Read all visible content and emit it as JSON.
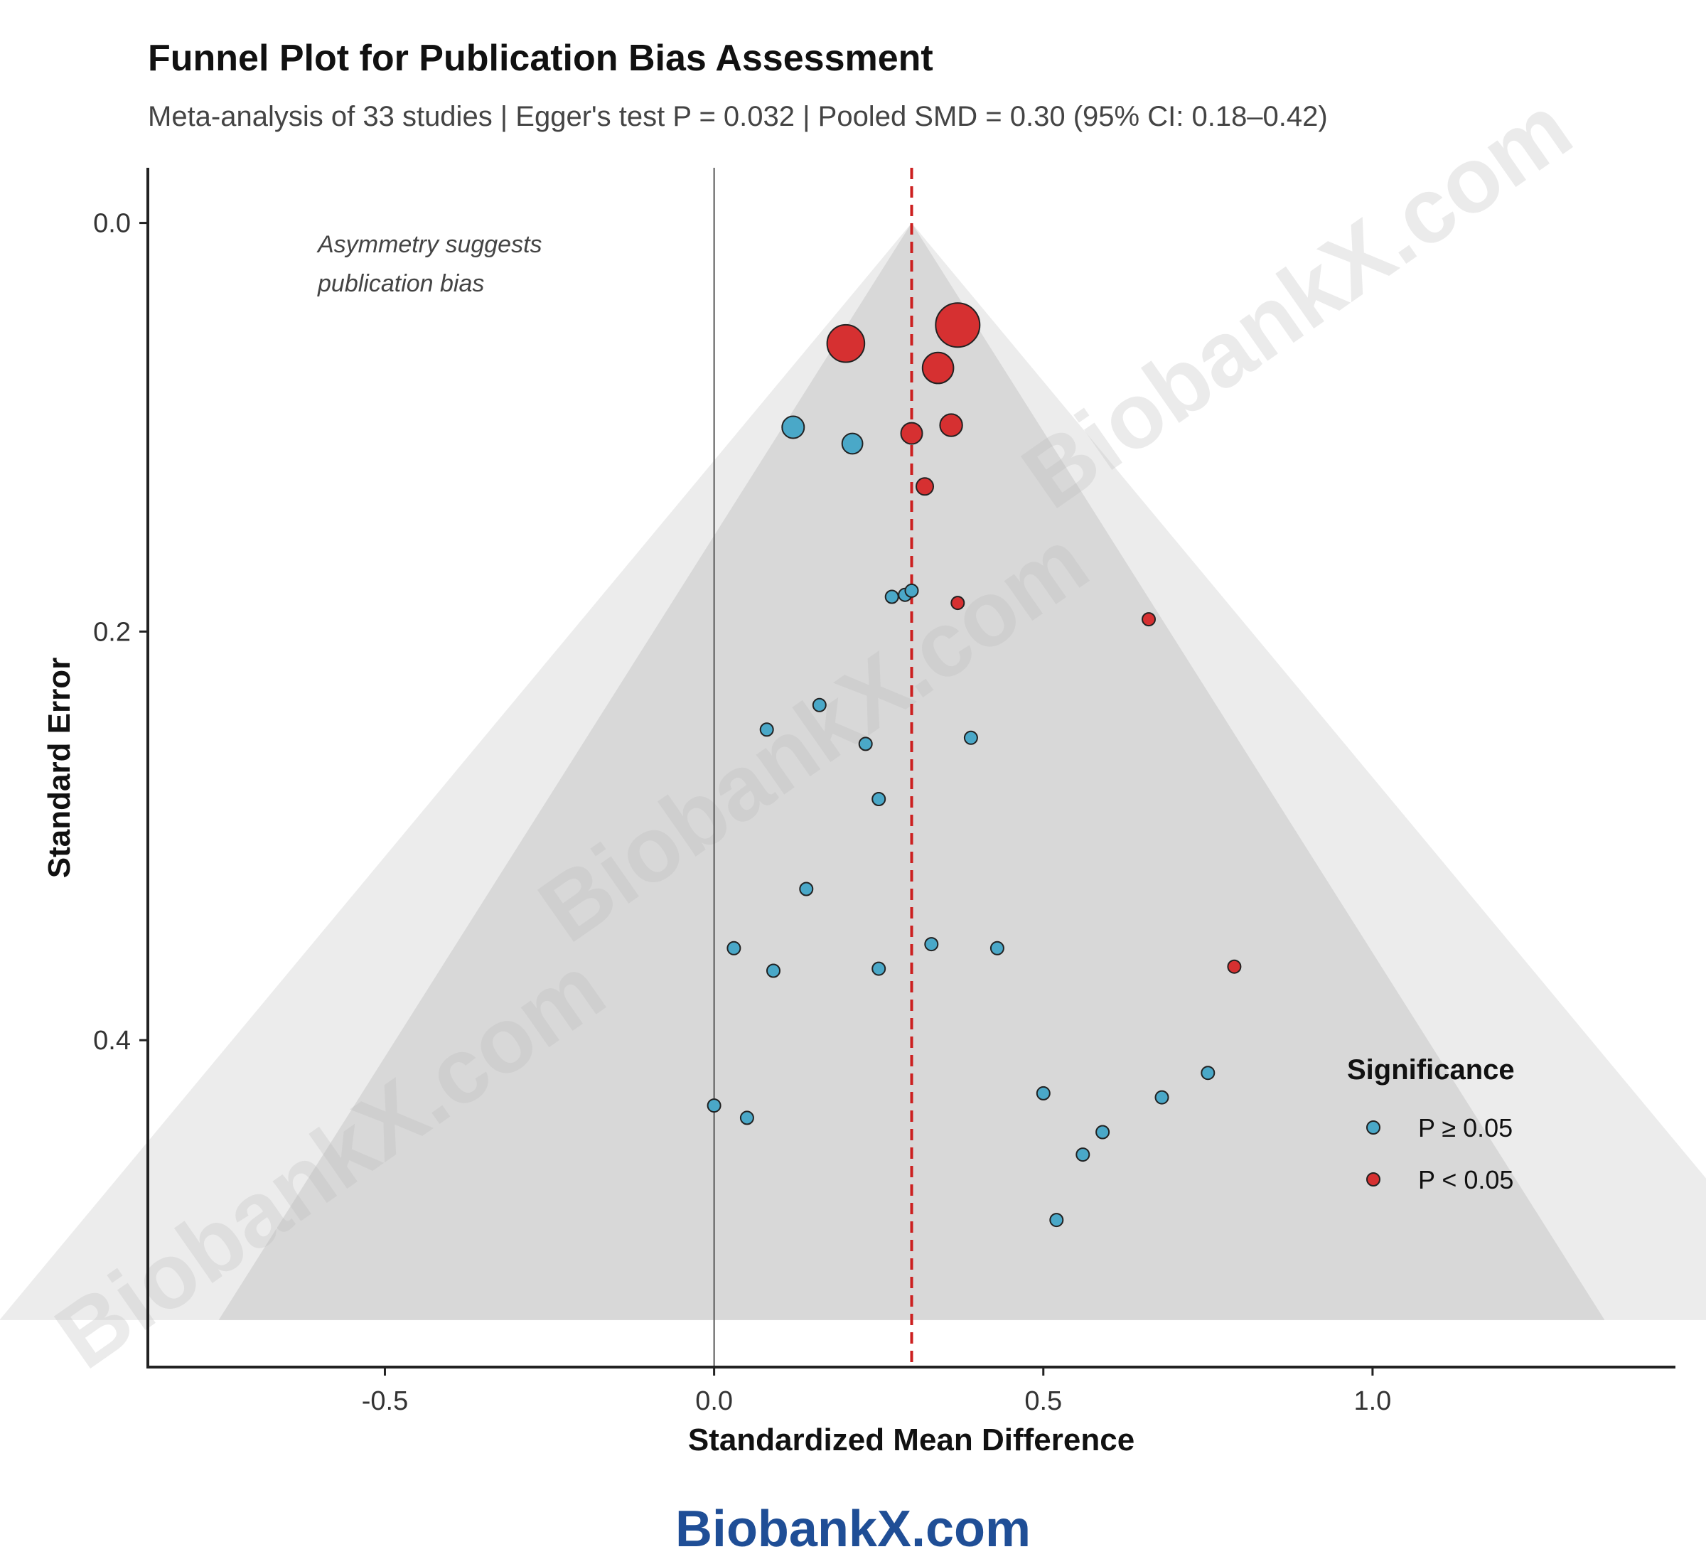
{
  "chart_data": {
    "type": "scatter",
    "title": "Funnel Plot for Publication Bias Assessment",
    "subtitle": "Meta-analysis of 33 studies | Egger's test P = 0.032 | Pooled SMD = 0.30 (95% CI: 0.18–0.42)",
    "xlabel": "Standardized Mean Difference",
    "ylabel": "Standard Error",
    "xlim": [
      -0.86,
      1.46
    ],
    "ylim": [
      -0.027,
      0.56
    ],
    "y_reversed": true,
    "x_ticks": [
      -0.5,
      0.0,
      0.5,
      1.0
    ],
    "x_tick_labels": [
      "-0.5",
      "0.0",
      "0.5",
      "1.0"
    ],
    "y_ticks": [
      0.0,
      0.2,
      0.4
    ],
    "y_tick_labels": [
      "0.0",
      "0.2",
      "0.4"
    ],
    "pooled_smd": 0.3,
    "funnel_se_max": 0.537,
    "funnel_z_inner": 1.96,
    "funnel_z_outer": 2.58,
    "reference_line_x": 0.0,
    "annotation": [
      "Asymmetry suggests",
      "publication bias"
    ],
    "legend": {
      "title": "Significance",
      "position": "bottom-right",
      "entries": [
        {
          "label": "P ≥ 0.05",
          "color": "#4aa8c8"
        },
        {
          "label": "P < 0.05",
          "color": "#d63031"
        }
      ]
    },
    "points": [
      {
        "x": 0.37,
        "y": 0.05,
        "sig": true
      },
      {
        "x": 0.2,
        "y": 0.059,
        "sig": true
      },
      {
        "x": 0.34,
        "y": 0.071,
        "sig": true
      },
      {
        "x": 0.12,
        "y": 0.1,
        "sig": false
      },
      {
        "x": 0.36,
        "y": 0.099,
        "sig": true
      },
      {
        "x": 0.3,
        "y": 0.103,
        "sig": true
      },
      {
        "x": 0.21,
        "y": 0.108,
        "sig": false
      },
      {
        "x": 0.32,
        "y": 0.129,
        "sig": true
      },
      {
        "x": 0.27,
        "y": 0.183,
        "sig": false
      },
      {
        "x": 0.29,
        "y": 0.182,
        "sig": false
      },
      {
        "x": 0.3,
        "y": 0.18,
        "sig": false
      },
      {
        "x": 0.37,
        "y": 0.186,
        "sig": true
      },
      {
        "x": 0.66,
        "y": 0.194,
        "sig": true
      },
      {
        "x": 0.16,
        "y": 0.236,
        "sig": false
      },
      {
        "x": 0.08,
        "y": 0.248,
        "sig": false
      },
      {
        "x": 0.23,
        "y": 0.255,
        "sig": false
      },
      {
        "x": 0.39,
        "y": 0.252,
        "sig": false
      },
      {
        "x": 0.25,
        "y": 0.282,
        "sig": false
      },
      {
        "x": 0.14,
        "y": 0.326,
        "sig": false
      },
      {
        "x": 0.03,
        "y": 0.355,
        "sig": false
      },
      {
        "x": 0.33,
        "y": 0.353,
        "sig": false
      },
      {
        "x": 0.43,
        "y": 0.355,
        "sig": false
      },
      {
        "x": 0.09,
        "y": 0.366,
        "sig": false
      },
      {
        "x": 0.25,
        "y": 0.365,
        "sig": false
      },
      {
        "x": 0.79,
        "y": 0.364,
        "sig": true
      },
      {
        "x": 0.75,
        "y": 0.416,
        "sig": false
      },
      {
        "x": 0.5,
        "y": 0.426,
        "sig": false
      },
      {
        "x": 0.68,
        "y": 0.428,
        "sig": false
      },
      {
        "x": 0.0,
        "y": 0.432,
        "sig": false
      },
      {
        "x": 0.05,
        "y": 0.438,
        "sig": false
      },
      {
        "x": 0.59,
        "y": 0.445,
        "sig": false
      },
      {
        "x": 0.56,
        "y": 0.456,
        "sig": false
      },
      {
        "x": 0.52,
        "y": 0.488,
        "sig": false
      }
    ]
  },
  "watermark_text": "BiobankX.com",
  "footer_brand": "BiobankX.com",
  "colors": {
    "nonsig": "#4aa8c8",
    "sig": "#d63031",
    "pooled_line": "#cc1f1f",
    "funnel_outer": "#ececec",
    "funnel_inner": "#d8d8d8",
    "brand": "#1f4e96"
  }
}
